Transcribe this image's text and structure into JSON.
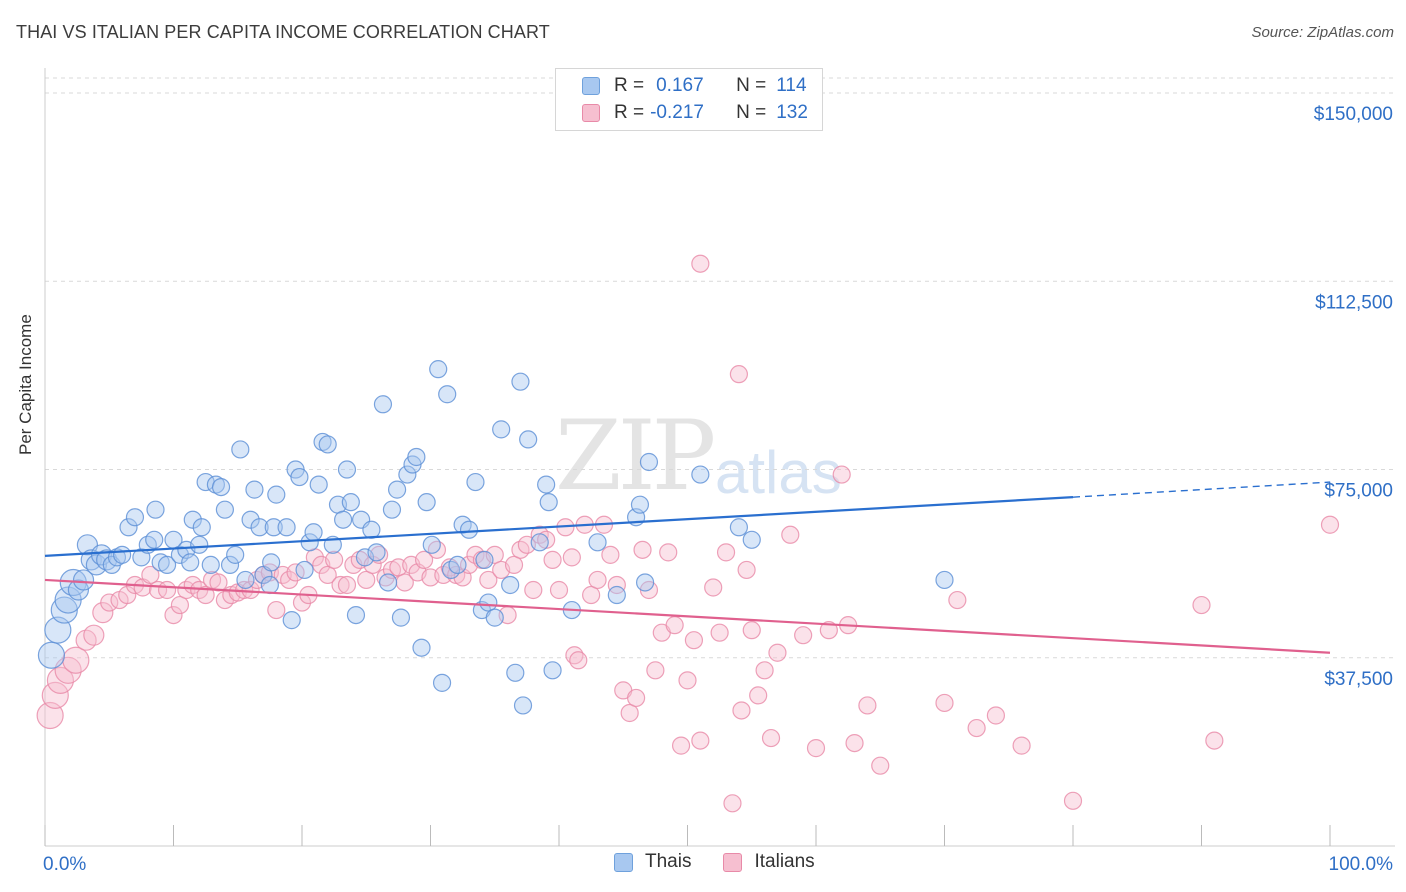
{
  "title": "THAI VS ITALIAN PER CAPITA INCOME CORRELATION CHART",
  "source": "Source: ZipAtlas.com",
  "watermark": {
    "zip": "ZIP",
    "atlas": "atlas"
  },
  "legend": {
    "rows": [
      {
        "r_label": "R =",
        "r_value": "0.167",
        "n_label": "N =",
        "n_value": "114",
        "color": "#a8c8f0",
        "border": "#6fa1dc"
      },
      {
        "r_label": "R =",
        "r_value": "-0.217",
        "n_label": "N =",
        "n_value": "132",
        "color": "#f6bfd0",
        "border": "#e88aa8"
      }
    ]
  },
  "bottom_legend": {
    "thais": "Thais",
    "italians": "Italians"
  },
  "chart_data": {
    "type": "scatter",
    "title": "THAI VS ITALIAN PER CAPITA INCOME CORRELATION CHART",
    "xlabel": "",
    "ylabel": "Per Capita Income",
    "xlim": [
      0,
      100
    ],
    "ylim": [
      0,
      153000
    ],
    "x_tick_labels": [
      "0.0%",
      "100.0%"
    ],
    "y_ticks": [
      37500,
      75000,
      112500,
      150000
    ],
    "y_tick_labels": [
      "$37,500",
      "$75,000",
      "$112,500",
      "$150,000"
    ],
    "grid": "horizontal dashed",
    "colors": {
      "thais": "#5b8fd6",
      "italians": "#e889a8",
      "thais_line": "#2a6fcf",
      "italians_line": "#e0608e",
      "axis_text": "#2f6fc6"
    },
    "series": [
      {
        "name": "Thais",
        "trend": {
          "x": [
            0,
            80,
            100
          ],
          "y": [
            57800,
            69500,
            72500
          ]
        },
        "points": [
          [
            0.5,
            38000
          ],
          [
            1,
            43000
          ],
          [
            1.5,
            47000
          ],
          [
            1.8,
            49000
          ],
          [
            2.2,
            52500
          ],
          [
            2.6,
            51000
          ],
          [
            3,
            53000
          ],
          [
            3.3,
            60000
          ],
          [
            3.6,
            57000
          ],
          [
            4,
            56000
          ],
          [
            4.4,
            58000
          ],
          [
            4.8,
            57000
          ],
          [
            5.2,
            56000
          ],
          [
            5.6,
            57500
          ],
          [
            6,
            58000
          ],
          [
            6.5,
            63500
          ],
          [
            7,
            65500
          ],
          [
            7.5,
            57500
          ],
          [
            8,
            60000
          ],
          [
            8.5,
            61000
          ],
          [
            8.6,
            67000
          ],
          [
            9,
            56500
          ],
          [
            9.5,
            56000
          ],
          [
            10,
            61000
          ],
          [
            10.5,
            58000
          ],
          [
            11,
            59000
          ],
          [
            11.3,
            56500
          ],
          [
            11.5,
            65000
          ],
          [
            12,
            60000
          ],
          [
            12.2,
            63500
          ],
          [
            12.5,
            72500
          ],
          [
            12.9,
            56000
          ],
          [
            13.3,
            72000
          ],
          [
            13.7,
            71500
          ],
          [
            14,
            67000
          ],
          [
            14.4,
            56000
          ],
          [
            14.8,
            58000
          ],
          [
            15.2,
            79000
          ],
          [
            15.6,
            53000
          ],
          [
            16,
            65000
          ],
          [
            16.3,
            71000
          ],
          [
            16.7,
            63500
          ],
          [
            17,
            54000
          ],
          [
            17.5,
            52000
          ],
          [
            17.6,
            56500
          ],
          [
            17.8,
            63500
          ],
          [
            18,
            70000
          ],
          [
            18.8,
            63500
          ],
          [
            19.2,
            45000
          ],
          [
            19.5,
            75000
          ],
          [
            19.8,
            73500
          ],
          [
            20.2,
            55000
          ],
          [
            20.6,
            60500
          ],
          [
            20.9,
            62500
          ],
          [
            21.3,
            72000
          ],
          [
            21.6,
            80500
          ],
          [
            22,
            80000
          ],
          [
            22.4,
            60000
          ],
          [
            22.8,
            68000
          ],
          [
            23.2,
            65000
          ],
          [
            23.5,
            75000
          ],
          [
            23.8,
            68500
          ],
          [
            24.2,
            46000
          ],
          [
            24.6,
            65000
          ],
          [
            24.9,
            57500
          ],
          [
            25.4,
            63000
          ],
          [
            25.8,
            58500
          ],
          [
            26.3,
            88000
          ],
          [
            26.7,
            52500
          ],
          [
            27,
            67000
          ],
          [
            27.4,
            71000
          ],
          [
            27.7,
            45500
          ],
          [
            28.2,
            74000
          ],
          [
            28.6,
            76000
          ],
          [
            28.9,
            77500
          ],
          [
            29.3,
            39500
          ],
          [
            29.7,
            68500
          ],
          [
            30.1,
            60000
          ],
          [
            30.6,
            95000
          ],
          [
            30.9,
            32500
          ],
          [
            31.3,
            90000
          ],
          [
            31.6,
            55000
          ],
          [
            32.1,
            56000
          ],
          [
            32.5,
            64000
          ],
          [
            33,
            63000
          ],
          [
            33.5,
            72500
          ],
          [
            34,
            47000
          ],
          [
            34.2,
            57000
          ],
          [
            34.5,
            48500
          ],
          [
            35,
            45500
          ],
          [
            35.5,
            83000
          ],
          [
            36.2,
            52000
          ],
          [
            36.6,
            34500
          ],
          [
            37,
            92500
          ],
          [
            37.2,
            28000
          ],
          [
            37.6,
            81000
          ],
          [
            38.5,
            60500
          ],
          [
            39,
            72000
          ],
          [
            39.2,
            68500
          ],
          [
            39.5,
            35000
          ],
          [
            41,
            47000
          ],
          [
            43,
            60500
          ],
          [
            44.5,
            50000
          ],
          [
            46,
            65500
          ],
          [
            46.3,
            68000
          ],
          [
            46.7,
            52500
          ],
          [
            47,
            76500
          ],
          [
            51,
            74000
          ],
          [
            54,
            63500
          ],
          [
            55,
            61000
          ],
          [
            70,
            53000
          ]
        ]
      },
      {
        "name": "Italians",
        "trend": {
          "x": [
            0,
            100
          ],
          "y": [
            53000,
            38500
          ]
        },
        "points": [
          [
            0.4,
            26000
          ],
          [
            0.8,
            30000
          ],
          [
            1.2,
            33000
          ],
          [
            1.8,
            35000
          ],
          [
            2.4,
            37000
          ],
          [
            3.2,
            41000
          ],
          [
            3.8,
            42000
          ],
          [
            4.5,
            46500
          ],
          [
            5,
            48500
          ],
          [
            5.8,
            49000
          ],
          [
            6.4,
            50000
          ],
          [
            7,
            52000
          ],
          [
            7.6,
            51500
          ],
          [
            8.2,
            54000
          ],
          [
            8.8,
            51000
          ],
          [
            9.5,
            51000
          ],
          [
            10,
            46000
          ],
          [
            10.5,
            48000
          ],
          [
            11,
            51000
          ],
          [
            11.5,
            52000
          ],
          [
            12,
            51000
          ],
          [
            12.5,
            50000
          ],
          [
            13,
            53000
          ],
          [
            13.5,
            52500
          ],
          [
            14,
            49000
          ],
          [
            14.5,
            50000
          ],
          [
            15,
            50500
          ],
          [
            15.5,
            51000
          ],
          [
            16,
            51000
          ],
          [
            16.5,
            53000
          ],
          [
            17,
            54000
          ],
          [
            17.5,
            54500
          ],
          [
            18,
            47000
          ],
          [
            18.5,
            54000
          ],
          [
            19,
            53000
          ],
          [
            19.5,
            54500
          ],
          [
            20,
            48500
          ],
          [
            20.5,
            50000
          ],
          [
            21,
            57500
          ],
          [
            21.5,
            56000
          ],
          [
            22,
            54000
          ],
          [
            22.5,
            57000
          ],
          [
            23,
            52000
          ],
          [
            23.5,
            52000
          ],
          [
            24,
            56000
          ],
          [
            24.5,
            57000
          ],
          [
            25,
            53000
          ],
          [
            25.5,
            56000
          ],
          [
            26,
            58000
          ],
          [
            26.5,
            53500
          ],
          [
            27,
            55000
          ],
          [
            27.5,
            55500
          ],
          [
            28,
            52500
          ],
          [
            28.5,
            56000
          ],
          [
            29,
            54500
          ],
          [
            29.5,
            57000
          ],
          [
            30,
            53500
          ],
          [
            30.5,
            59000
          ],
          [
            31,
            54000
          ],
          [
            31.5,
            55500
          ],
          [
            32,
            54000
          ],
          [
            32.5,
            53500
          ],
          [
            33,
            56000
          ],
          [
            33.5,
            58000
          ],
          [
            34,
            57000
          ],
          [
            34.5,
            53000
          ],
          [
            35,
            58000
          ],
          [
            35.5,
            55000
          ],
          [
            36,
            46000
          ],
          [
            36.5,
            56000
          ],
          [
            37,
            59000
          ],
          [
            37.5,
            60000
          ],
          [
            38,
            51000
          ],
          [
            38.5,
            62000
          ],
          [
            39,
            61000
          ],
          [
            39.5,
            57000
          ],
          [
            40,
            51000
          ],
          [
            40.5,
            63500
          ],
          [
            41,
            57500
          ],
          [
            41.2,
            38000
          ],
          [
            41.5,
            37000
          ],
          [
            42,
            64000
          ],
          [
            42.5,
            50000
          ],
          [
            43,
            53000
          ],
          [
            43.5,
            64000
          ],
          [
            44,
            58000
          ],
          [
            44.5,
            52000
          ],
          [
            45,
            31000
          ],
          [
            45.5,
            26500
          ],
          [
            46,
            29500
          ],
          [
            46.5,
            59000
          ],
          [
            47,
            51000
          ],
          [
            47.5,
            35000
          ],
          [
            48,
            42500
          ],
          [
            48.5,
            58500
          ],
          [
            49,
            44000
          ],
          [
            49.5,
            20000
          ],
          [
            50,
            33000
          ],
          [
            50.5,
            41000
          ],
          [
            51,
            21000
          ],
          [
            52,
            51500
          ],
          [
            52.5,
            42500
          ],
          [
            53,
            58500
          ],
          [
            53.5,
            8500
          ],
          [
            54,
            94000
          ],
          [
            54.2,
            27000
          ],
          [
            54.6,
            55000
          ],
          [
            55,
            43000
          ],
          [
            55.5,
            30000
          ],
          [
            56,
            35000
          ],
          [
            56.5,
            21500
          ],
          [
            57,
            38500
          ],
          [
            58,
            62000
          ],
          [
            59,
            42000
          ],
          [
            60,
            19500
          ],
          [
            61,
            43000
          ],
          [
            62,
            74000
          ],
          [
            62.5,
            44000
          ],
          [
            63,
            20500
          ],
          [
            64,
            28000
          ],
          [
            65,
            16000
          ],
          [
            70,
            28500
          ],
          [
            71,
            49000
          ],
          [
            72.5,
            23500
          ],
          [
            74,
            26000
          ],
          [
            76,
            20000
          ],
          [
            80,
            9000
          ],
          [
            90,
            48000
          ],
          [
            91,
            21000
          ],
          [
            100,
            64000
          ],
          [
            51,
            116000
          ]
        ]
      }
    ]
  }
}
